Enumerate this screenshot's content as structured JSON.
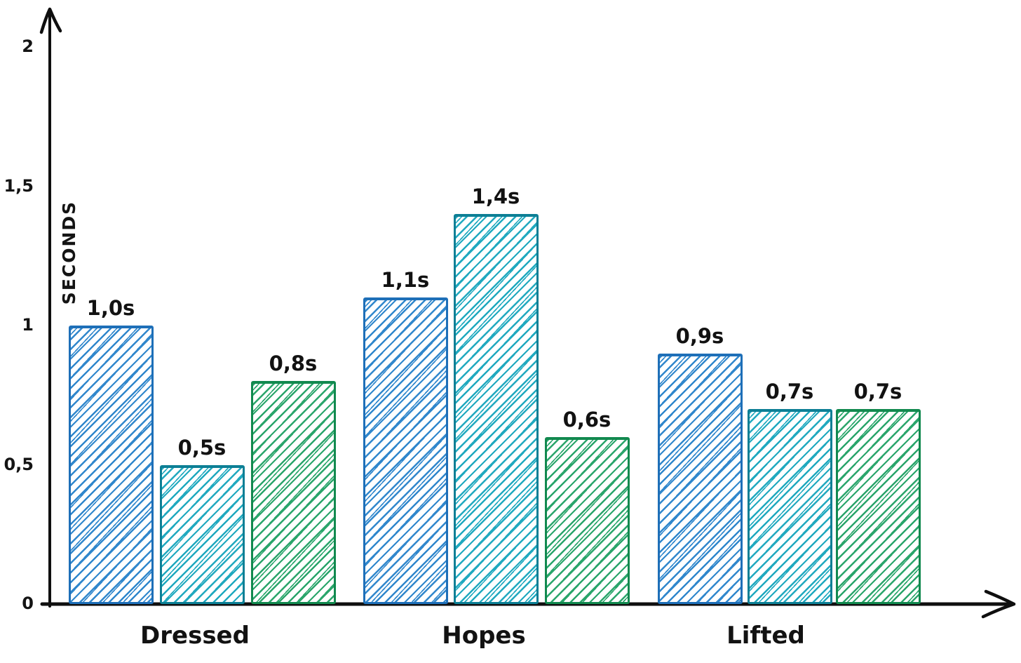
{
  "chart_data": {
    "type": "bar",
    "title": "",
    "xlabel": "",
    "ylabel": "SECONDS",
    "ylim": [
      0,
      2
    ],
    "grid": false,
    "legend": false,
    "style": "hand-drawn sketch, hatched bars",
    "yticks": [
      {
        "value": 0,
        "label": "0"
      },
      {
        "value": 0.5,
        "label": "0,5"
      },
      {
        "value": 1,
        "label": "1"
      },
      {
        "value": 1.5,
        "label": "1,5"
      },
      {
        "value": 2,
        "label": "2"
      }
    ],
    "categories": [
      "Dressed",
      "Hopes",
      "Lifted"
    ],
    "groups": [
      {
        "category": "Dressed",
        "bars": [
          {
            "value": 1.0,
            "label": "1,0s",
            "color": "blue"
          },
          {
            "value": 0.5,
            "label": "0,5s",
            "color": "teal"
          },
          {
            "value": 0.8,
            "label": "0,8s",
            "color": "green"
          }
        ]
      },
      {
        "category": "Hopes",
        "bars": [
          {
            "value": 1.1,
            "label": "1,1s",
            "color": "blue"
          },
          {
            "value": 1.4,
            "label": "1,4s",
            "color": "teal"
          },
          {
            "value": 0.6,
            "label": "0,6s",
            "color": "green"
          }
        ]
      },
      {
        "category": "Lifted",
        "bars": [
          {
            "value": 0.9,
            "label": "0,9s",
            "color": "blue"
          },
          {
            "value": 0.7,
            "label": "0,7s",
            "color": "teal"
          },
          {
            "value": 0.7,
            "label": "0,7s",
            "color": "green"
          }
        ]
      }
    ],
    "palette": {
      "blue": {
        "stroke": "#1e6fb8",
        "hatch": "#3087cc"
      },
      "teal": {
        "stroke": "#0d7f95",
        "hatch": "#20a9bf"
      },
      "green": {
        "stroke": "#12894f",
        "hatch": "#2aa56b"
      }
    },
    "axis_color": "#0f0f0f",
    "text_color": "#141414"
  }
}
